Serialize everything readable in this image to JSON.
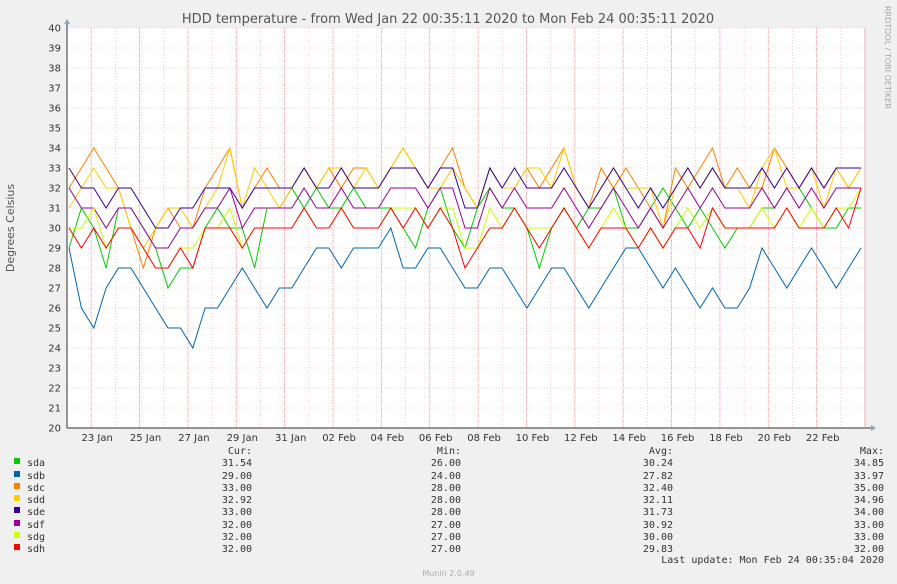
{
  "chart_data": {
    "type": "line",
    "title": "HDD temperature - from Wed Jan 22 00:35:11 2020 to Mon Feb 24 00:35:11 2020",
    "ylabel": "Degrees Celsius",
    "xlabel": "",
    "ylim": [
      20,
      40
    ],
    "yticks": [
      20,
      21,
      22,
      23,
      24,
      25,
      26,
      27,
      28,
      29,
      30,
      31,
      32,
      33,
      34,
      35,
      36,
      37,
      38,
      39,
      40
    ],
    "xlim": [
      "2020-01-22",
      "2020-02-24"
    ],
    "xticks": [
      "23 Jan",
      "25 Jan",
      "27 Jan",
      "29 Jan",
      "31 Jan",
      "02 Feb",
      "04 Feb",
      "06 Feb",
      "08 Feb",
      "10 Feb",
      "12 Feb",
      "14 Feb",
      "16 Feb",
      "18 Feb",
      "20 Feb",
      "22 Feb"
    ],
    "grid": true,
    "legend_placement": "bottom",
    "series": [
      {
        "name": "sda",
        "color": "#00cc00",
        "cur": "31.54",
        "min": "26.00",
        "avg": "30.24",
        "max": "34.85",
        "values": [
          29,
          31,
          30,
          28,
          31,
          31,
          30,
          29,
          27,
          28,
          28,
          30,
          31,
          30,
          30,
          28,
          31,
          31,
          32,
          31,
          32,
          31,
          31,
          32,
          31,
          31,
          31,
          30,
          29,
          31,
          32,
          30,
          29,
          31,
          32,
          31,
          31,
          30,
          28,
          30,
          31,
          30,
          31,
          31,
          32,
          30,
          30,
          31,
          32,
          31,
          30,
          31,
          30,
          29,
          30,
          30,
          31,
          31,
          32,
          32,
          31,
          30,
          30,
          31,
          31
        ]
      },
      {
        "name": "sdb",
        "color": "#0066b3",
        "cur": "29.00",
        "min": "24.00",
        "avg": "27.82",
        "max": "33.97",
        "values": [
          29,
          26,
          25,
          27,
          28,
          28,
          27,
          26,
          25,
          25,
          24,
          26,
          26,
          27,
          28,
          27,
          26,
          27,
          27,
          28,
          29,
          29,
          28,
          29,
          29,
          29,
          30,
          28,
          28,
          29,
          29,
          28,
          27,
          27,
          28,
          28,
          27,
          26,
          27,
          28,
          28,
          27,
          26,
          27,
          28,
          29,
          29,
          28,
          27,
          28,
          27,
          26,
          27,
          26,
          26,
          27,
          29,
          28,
          27,
          28,
          29,
          28,
          27,
          28,
          29
        ]
      },
      {
        "name": "sdc",
        "color": "#ff8000",
        "cur": "33.00",
        "min": "28.00",
        "avg": "32.40",
        "max": "35.00",
        "values": [
          32,
          33,
          34,
          33,
          32,
          30,
          28,
          30,
          31,
          30,
          30,
          32,
          33,
          34,
          31,
          32,
          33,
          32,
          32,
          33,
          32,
          33,
          32,
          33,
          33,
          32,
          33,
          34,
          33,
          32,
          33,
          34,
          32,
          31,
          33,
          32,
          32,
          33,
          32,
          33,
          34,
          32,
          31,
          33,
          32,
          33,
          32,
          31,
          30,
          33,
          32,
          33,
          34,
          32,
          33,
          32,
          32,
          34,
          33,
          32,
          33,
          32,
          33,
          32,
          33
        ]
      },
      {
        "name": "sdd",
        "color": "#ffcc00",
        "cur": "32.92",
        "min": "28.00",
        "avg": "32.11",
        "max": "34.96",
        "values": [
          31,
          32,
          33,
          32,
          32,
          30,
          29,
          30,
          31,
          31,
          30,
          31,
          32,
          34,
          31,
          33,
          32,
          31,
          32,
          33,
          32,
          33,
          33,
          32,
          33,
          32,
          33,
          34,
          33,
          32,
          32,
          33,
          32,
          31,
          33,
          32,
          32,
          33,
          33,
          32,
          34,
          32,
          31,
          32,
          33,
          32,
          32,
          32,
          30,
          32,
          33,
          32,
          33,
          32,
          32,
          31,
          33,
          34,
          32,
          32,
          33,
          31,
          33,
          32,
          33
        ]
      },
      {
        "name": "sde",
        "color": "#330099",
        "cur": "33.00",
        "min": "28.00",
        "avg": "31.73",
        "max": "34.00",
        "values": [
          33,
          32,
          32,
          31,
          32,
          32,
          31,
          30,
          30,
          31,
          31,
          32,
          32,
          32,
          31,
          32,
          32,
          32,
          32,
          33,
          32,
          32,
          33,
          32,
          32,
          32,
          33,
          33,
          33,
          32,
          33,
          33,
          31,
          31,
          33,
          32,
          33,
          32,
          32,
          32,
          33,
          32,
          31,
          32,
          33,
          32,
          31,
          32,
          31,
          32,
          33,
          32,
          33,
          32,
          32,
          32,
          33,
          32,
          33,
          32,
          33,
          32,
          33,
          33,
          33
        ]
      },
      {
        "name": "sdf",
        "color": "#990099",
        "cur": "32.00",
        "min": "27.00",
        "avg": "30.92",
        "max": "33.00",
        "values": [
          32,
          31,
          31,
          30,
          31,
          31,
          30,
          29,
          29,
          30,
          30,
          31,
          31,
          32,
          30,
          31,
          31,
          31,
          31,
          32,
          31,
          31,
          32,
          31,
          31,
          31,
          32,
          32,
          32,
          31,
          32,
          32,
          30,
          30,
          32,
          31,
          32,
          31,
          31,
          31,
          32,
          31,
          30,
          31,
          32,
          31,
          30,
          31,
          30,
          31,
          32,
          31,
          32,
          31,
          31,
          31,
          32,
          31,
          32,
          31,
          32,
          31,
          32,
          32,
          32
        ]
      },
      {
        "name": "sdg",
        "color": "#ccff00",
        "cur": "32.00",
        "min": "27.00",
        "avg": "30.00",
        "max": "33.00",
        "values": [
          30,
          30,
          31,
          29,
          30,
          30,
          29,
          28,
          28,
          29,
          29,
          30,
          30,
          31,
          29,
          30,
          30,
          30,
          30,
          31,
          30,
          30,
          31,
          30,
          30,
          30,
          31,
          31,
          31,
          30,
          31,
          31,
          29,
          29,
          31,
          30,
          31,
          30,
          30,
          30,
          31,
          30,
          29,
          30,
          31,
          30,
          29,
          30,
          29,
          30,
          31,
          30,
          31,
          30,
          30,
          30,
          31,
          30,
          31,
          30,
          31,
          30,
          31,
          31,
          32
        ]
      },
      {
        "name": "sdh",
        "color": "#ff0000",
        "cur": "32.00",
        "min": "27.00",
        "avg": "29.83",
        "max": "32.00",
        "values": [
          30,
          29,
          30,
          29,
          30,
          30,
          29,
          28,
          28,
          29,
          28,
          30,
          30,
          30,
          29,
          30,
          30,
          30,
          30,
          31,
          30,
          30,
          31,
          30,
          30,
          30,
          31,
          30,
          31,
          30,
          31,
          30,
          28,
          29,
          30,
          30,
          31,
          30,
          29,
          30,
          31,
          30,
          29,
          30,
          30,
          30,
          29,
          30,
          29,
          30,
          30,
          29,
          31,
          30,
          30,
          30,
          30,
          30,
          31,
          30,
          30,
          30,
          31,
          30,
          32
        ]
      }
    ]
  },
  "legend": {
    "header": {
      "cur": "Cur:",
      "min": "Min:",
      "avg": "Avg:",
      "max": "Max:"
    }
  },
  "last_update": "Last update: Mon Feb 24 00:35:04 2020",
  "watermark": "RRDTOOL / TOBI OETIKER",
  "footer": "Munin 2.0.49",
  "colors": {
    "background": "#f0f0f0",
    "plot_bg": "#ffffff",
    "grid": "#e0a0a0",
    "axis": "#333333"
  }
}
